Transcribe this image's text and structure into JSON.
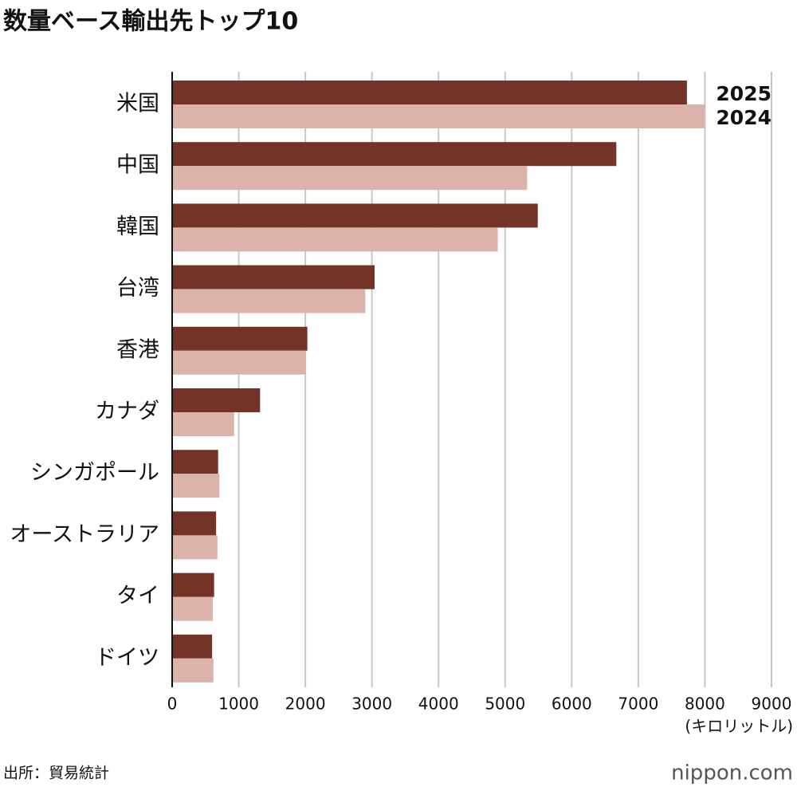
{
  "chart_data": {
    "type": "bar",
    "orientation": "horizontal",
    "title": "数量ベース輸出先トップ10",
    "categories": [
      "米国",
      "中国",
      "韓国",
      "台湾",
      "香港",
      "カナダ",
      "シンガポール",
      "オーストラリア",
      "タイ",
      "ドイツ"
    ],
    "series": [
      {
        "name": "2025",
        "color": "#733326",
        "values": [
          7730,
          6670,
          5490,
          3040,
          2030,
          1320,
          690,
          660,
          630,
          600
        ]
      },
      {
        "name": "2024",
        "color": "#dbb3aa",
        "values": [
          8000,
          5330,
          4890,
          2900,
          2010,
          930,
          710,
          680,
          610,
          620
        ]
      }
    ],
    "xlim": [
      0,
      9000
    ],
    "xticks": [
      0,
      1000,
      2000,
      3000,
      4000,
      5000,
      6000,
      7000,
      8000,
      9000
    ],
    "x_unit": "(キロリットル)",
    "grid": true,
    "source": "出所：貿易統計",
    "logo": "nippon.com"
  }
}
